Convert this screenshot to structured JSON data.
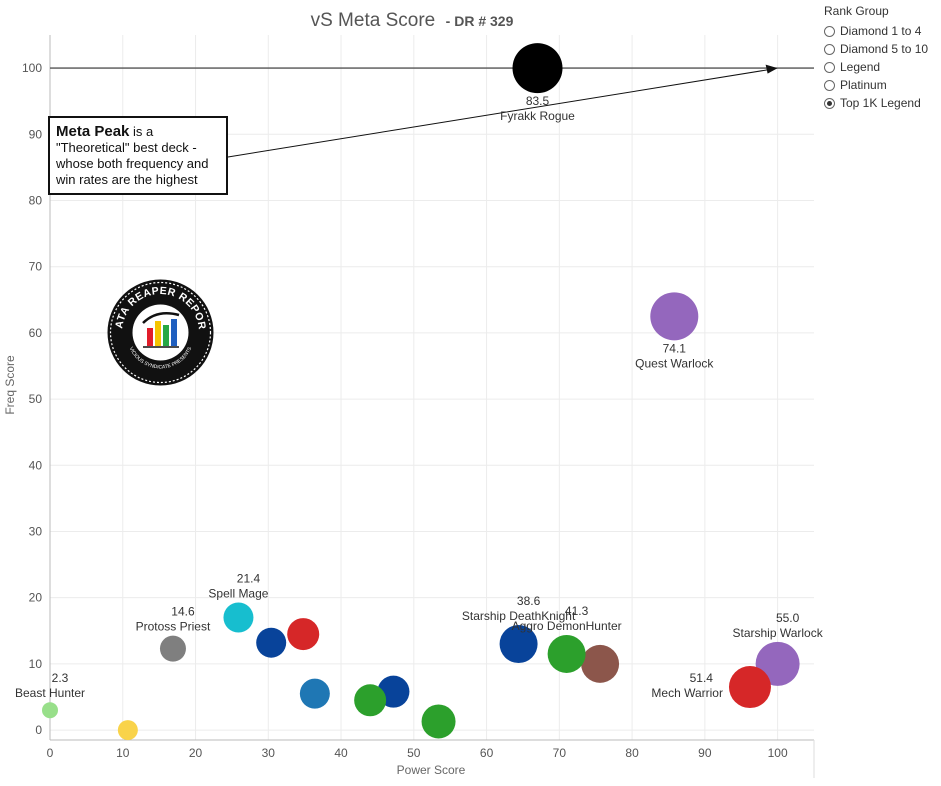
{
  "chart_data": {
    "type": "scatter",
    "title": "vS Meta Score",
    "subtitle": "- DR # 329",
    "xlabel": "Power Score",
    "ylabel": "Freq Score",
    "xlim": [
      0,
      105
    ],
    "ylim": [
      -1.5,
      105
    ],
    "xticks": [
      0,
      10,
      20,
      30,
      40,
      50,
      60,
      70,
      80,
      90,
      100
    ],
    "yticks": [
      0,
      10,
      20,
      30,
      40,
      50,
      60,
      70,
      80,
      90,
      100
    ],
    "reference_line": {
      "y": 100
    },
    "points": [
      {
        "x": 67.0,
        "y": 100.0,
        "size": 25,
        "color": "#000000",
        "value_label": "83.5",
        "name_label": "Fyrakk Rogue"
      },
      {
        "x": 85.8,
        "y": 62.5,
        "size": 24,
        "color": "#9467bd",
        "value_label": "74.1",
        "name_label": "Quest Warlock"
      },
      {
        "x": 100.0,
        "y": 10.0,
        "size": 22,
        "color": "#9467bd",
        "value_label": "55.0",
        "name_label": "Starship Warlock"
      },
      {
        "x": 96.2,
        "y": 6.5,
        "size": 21,
        "color": "#d62728",
        "value_label": "51.4",
        "name_label": "Mech Warrior"
      },
      {
        "x": 75.6,
        "y": 10.0,
        "size": 19,
        "color": "#8c564b",
        "value_label": "",
        "name_label": ""
      },
      {
        "x": 71.0,
        "y": 11.5,
        "size": 19,
        "color": "#2ca02c",
        "value_label": "41.3",
        "name_label": "Aggro DemonHunter"
      },
      {
        "x": 64.4,
        "y": 13.0,
        "size": 19,
        "color": "#08439a",
        "value_label": "38.6",
        "name_label": "Starship DeathKnight"
      },
      {
        "x": 53.4,
        "y": 1.3,
        "size": 17,
        "color": "#2ca02c",
        "value_label": "",
        "name_label": ""
      },
      {
        "x": 47.2,
        "y": 5.8,
        "size": 16,
        "color": "#08439a",
        "value_label": "",
        "name_label": ""
      },
      {
        "x": 44.0,
        "y": 4.5,
        "size": 16,
        "color": "#2ca02c",
        "value_label": "",
        "name_label": ""
      },
      {
        "x": 36.4,
        "y": 5.5,
        "size": 15,
        "color": "#1f77b4",
        "value_label": "",
        "name_label": ""
      },
      {
        "x": 34.8,
        "y": 14.5,
        "size": 16,
        "color": "#d62728",
        "value_label": "",
        "name_label": ""
      },
      {
        "x": 30.4,
        "y": 13.2,
        "size": 15,
        "color": "#08439a",
        "value_label": "",
        "name_label": ""
      },
      {
        "x": 25.9,
        "y": 17.0,
        "size": 15,
        "color": "#17becf",
        "value_label": "21.4",
        "name_label": "Spell Mage"
      },
      {
        "x": 16.9,
        "y": 12.3,
        "size": 13,
        "color": "#7f7f7f",
        "value_label": "14.6",
        "name_label": "Protoss Priest"
      },
      {
        "x": 10.7,
        "y": 0.0,
        "size": 10,
        "color": "#f9d34a",
        "value_label": "",
        "name_label": ""
      },
      {
        "x": 0.0,
        "y": 3.0,
        "size": 8,
        "color": "#98df8a",
        "value_label": "2.3",
        "name_label": "Beast Hunter"
      }
    ]
  },
  "legend": {
    "title": "Rank Group",
    "options": [
      {
        "label": "Diamond 1 to 4",
        "selected": false
      },
      {
        "label": "Diamond 5 to 10",
        "selected": false
      },
      {
        "label": "Legend",
        "selected": false
      },
      {
        "label": "Platinum",
        "selected": false
      },
      {
        "label": "Top 1K Legend",
        "selected": true
      }
    ]
  },
  "annotation": {
    "bold": "Meta Peak",
    "text": " is a \"Theoretical\" best deck - whose both frequency and win rates are the highest"
  },
  "logo": {
    "top_text": "DATA REAPER REPORT",
    "bottom_text": "VICIOUS SYNDICATE PRESENTS"
  }
}
